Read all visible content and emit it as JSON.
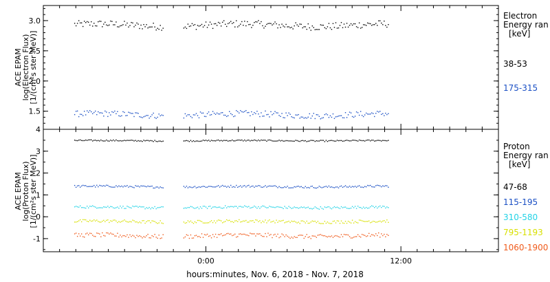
{
  "chart_data": {
    "type": "scatter",
    "x_axis": {
      "label": "hours:minutes, Nov.  6, 2018 - Nov.  7, 2018",
      "ticks": [
        "0:00",
        "12:00"
      ],
      "range_hours": [
        -10,
        18
      ]
    },
    "panels": [
      {
        "name": "electron",
        "ylabel_lines": [
          "ACE EPAM",
          "log(Electron Flux)",
          "[1/(cm²s ster MeV)]"
        ],
        "ylim": [
          1.2,
          3.25
        ],
        "yticks": [
          "1.5",
          "2.0",
          "2.5",
          "3.0"
        ],
        "legend_title_lines": [
          "Electron",
          "Energy ran",
          "[keV]"
        ],
        "series": [
          {
            "name": "38-53",
            "color": "#000000",
            "level": 2.93,
            "spread": 0.06
          },
          {
            "name": "175-315",
            "color": "#1a4fc4",
            "level": 1.45,
            "spread": 0.05
          }
        ]
      },
      {
        "name": "proton",
        "ylabel_lines": [
          "ACE EPAM",
          "log(Proton Flux)",
          "[1/(cm²s ster MeV)]"
        ],
        "ylim": [
          -1.6,
          4.0
        ],
        "yticks": [
          "-1",
          "0",
          "1",
          "2",
          "3",
          "4"
        ],
        "legend_title_lines": [
          "Proton",
          "Energy ran",
          "[keV]"
        ],
        "series": [
          {
            "name": "47-68",
            "color": "#000000",
            "level": 3.5,
            "spread": 0.03
          },
          {
            "name": "115-195",
            "color": "#1a4fc4",
            "level": 1.4,
            "spread": 0.05
          },
          {
            "name": "310-580",
            "color": "#22d3e6",
            "level": 0.45,
            "spread": 0.06
          },
          {
            "name": "795-1193",
            "color": "#d8e000",
            "level": -0.2,
            "spread": 0.07
          },
          {
            "name": "1060-1900",
            "color": "#f05a1a",
            "level": -0.85,
            "spread": 0.1
          }
        ]
      }
    ],
    "data_hours": {
      "start": -8.1,
      "gap_start": -2.6,
      "gap_end": -1.4,
      "end": 11.2
    }
  }
}
